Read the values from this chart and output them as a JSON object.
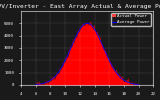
{
  "title": "Solar PV/Inverter - East Array Actual & Average Power Output",
  "xlabel": "",
  "ylabel": "",
  "bg_color": "#1a1a1a",
  "plot_bg": "#1a1a1a",
  "grid_color": "white",
  "area_color": "#ff0000",
  "line_color": "#ff0000",
  "avg_line_color": "#0000ff",
  "legend_labels": [
    "Actual Power",
    "Average Power"
  ],
  "legend_colors": [
    "#ff4444",
    "#0000ff"
  ],
  "x_start": 6,
  "x_end": 20,
  "peak_hour": 13,
  "peak_power": 5000,
  "ylim": [
    0,
    6000
  ],
  "xlim": [
    4,
    22
  ],
  "yticks": [
    0,
    1000,
    2000,
    3000,
    4000,
    5000
  ],
  "title_fontsize": 4.5,
  "tick_fontsize": 3,
  "legend_fontsize": 3
}
